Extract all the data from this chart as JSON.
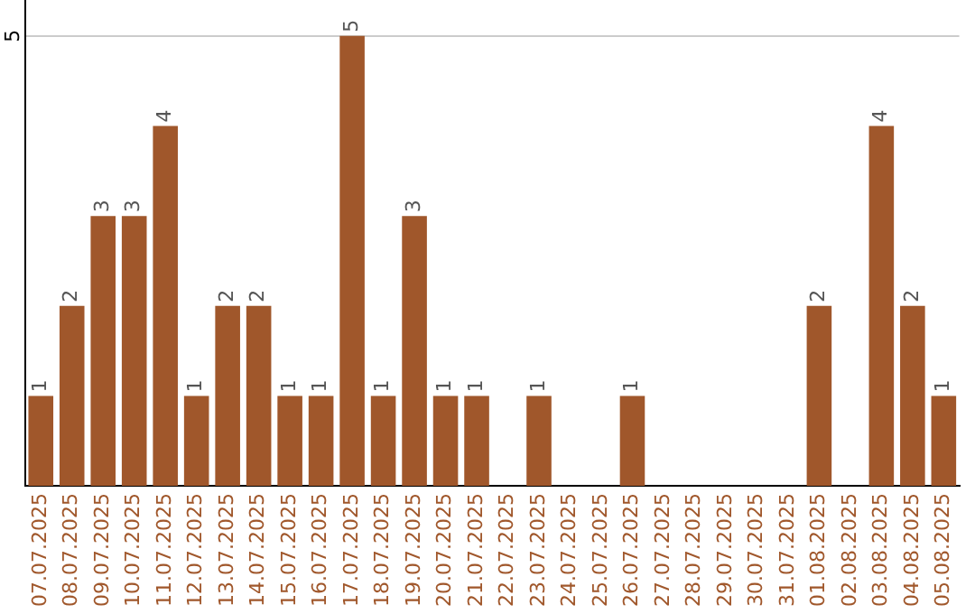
{
  "chart_data": {
    "type": "bar",
    "categories": [
      "07.07.2025",
      "08.07.2025",
      "09.07.2025",
      "10.07.2025",
      "11.07.2025",
      "12.07.2025",
      "13.07.2025",
      "14.07.2025",
      "15.07.2025",
      "16.07.2025",
      "17.07.2025",
      "18.07.2025",
      "19.07.2025",
      "20.07.2025",
      "21.07.2025",
      "22.07.2025",
      "23.07.2025",
      "24.07.2025",
      "25.07.2025",
      "26.07.2025",
      "27.07.2025",
      "28.07.2025",
      "29.07.2025",
      "30.07.2025",
      "31.07.2025",
      "01.08.2025",
      "02.08.2025",
      "03.08.2025",
      "04.08.2025",
      "05.08.2025"
    ],
    "values": [
      1,
      2,
      3,
      3,
      4,
      1,
      2,
      2,
      1,
      1,
      5,
      1,
      3,
      1,
      1,
      0,
      1,
      0,
      0,
      1,
      0,
      0,
      0,
      0,
      0,
      2,
      0,
      4,
      2,
      1
    ],
    "value_labels": [
      "1",
      "2",
      "3",
      "3",
      "4",
      "1",
      "2",
      "2",
      "1",
      "1",
      "5",
      "1",
      "3",
      "1",
      "1",
      null,
      "1",
      null,
      null,
      "1",
      null,
      null,
      null,
      null,
      null,
      "2",
      null,
      "4",
      "2",
      "1"
    ],
    "color": "#a0572b",
    "ylim": [
      0,
      5.4
    ],
    "yticks": [
      5
    ],
    "grid": "y",
    "legend": false
  }
}
